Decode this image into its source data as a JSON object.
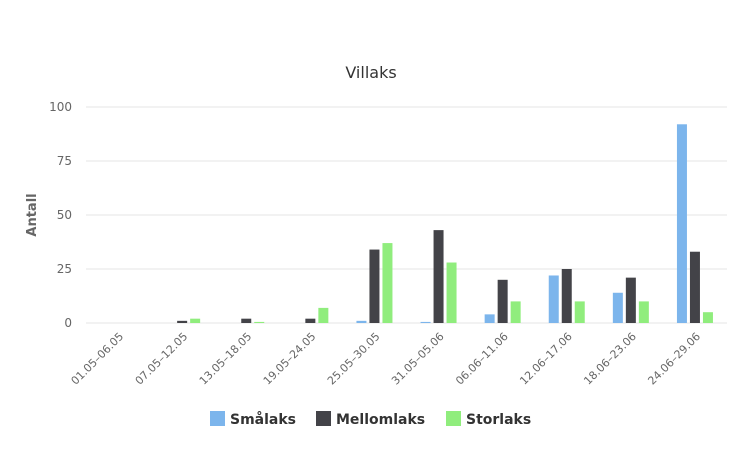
{
  "chart_data": {
    "type": "bar",
    "title": "Villaks",
    "xlabel": "",
    "ylabel": "Antall",
    "ylim": [
      0,
      100
    ],
    "yticks": [
      0,
      25,
      50,
      75,
      100
    ],
    "grid": true,
    "legend_position": "bottom",
    "categories": [
      "01.05–06.05",
      "07.05–12.05",
      "13.05–18.05",
      "19.05–24.05",
      "25.05–30.05",
      "31.05–05.06",
      "06.06–11.06",
      "12.06–17.06",
      "18.06–23.06",
      "24.06–29.06"
    ],
    "series": [
      {
        "name": "Smålaks",
        "color": "#7cb5ec",
        "values": [
          0,
          0,
          0,
          0,
          1,
          0.5,
          4,
          22,
          14,
          92
        ]
      },
      {
        "name": "Mellomlaks",
        "color": "#434348",
        "values": [
          0,
          1,
          2,
          2,
          34,
          43,
          20,
          25,
          21,
          33
        ]
      },
      {
        "name": "Storlaks",
        "color": "#90ed7d",
        "values": [
          0,
          2,
          0.5,
          7,
          37,
          28,
          10,
          10,
          10,
          5
        ]
      }
    ]
  }
}
